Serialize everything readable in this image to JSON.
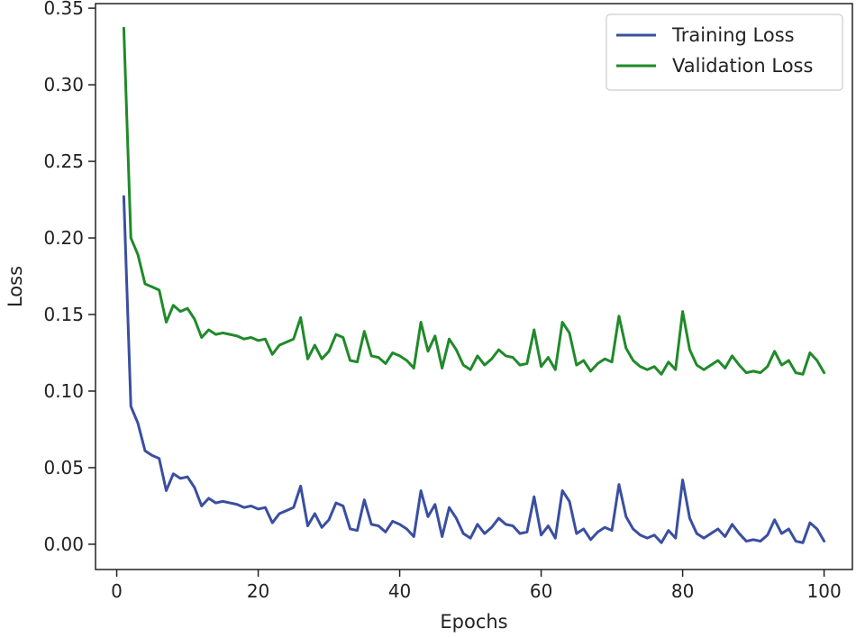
{
  "chart_data": {
    "type": "line",
    "title": "",
    "xlabel": "Epochs",
    "ylabel": "Loss",
    "xlim": [
      -3,
      104
    ],
    "ylim": [
      -0.0165,
      0.353
    ],
    "xticks": [
      0,
      20,
      40,
      60,
      80,
      100
    ],
    "xtick_labels": [
      "0",
      "20",
      "40",
      "60",
      "80",
      "100"
    ],
    "yticks": [
      0.0,
      0.05,
      0.1,
      0.15,
      0.2,
      0.25,
      0.3,
      0.35
    ],
    "ytick_labels": [
      "0.00",
      "0.05",
      "0.10",
      "0.15",
      "0.20",
      "0.25",
      "0.30",
      "0.35"
    ],
    "grid": false,
    "legend_position": "top-right",
    "series": [
      {
        "name": "Training Loss",
        "color": "#3a4fa0",
        "x": [
          1,
          2,
          3,
          4,
          5,
          6,
          7,
          8,
          9,
          10,
          11,
          12,
          13,
          14,
          15,
          16,
          17,
          18,
          19,
          20,
          21,
          22,
          23,
          24,
          25,
          26,
          27,
          28,
          29,
          30,
          31,
          32,
          33,
          34,
          35,
          36,
          37,
          38,
          39,
          40,
          41,
          42,
          43,
          44,
          45,
          46,
          47,
          48,
          49,
          50,
          51,
          52,
          53,
          54,
          55,
          56,
          57,
          58,
          59,
          60,
          61,
          62,
          63,
          64,
          65,
          66,
          67,
          68,
          69,
          70,
          71,
          72,
          73,
          74,
          75,
          76,
          77,
          78,
          79,
          80,
          81,
          82,
          83,
          84,
          85,
          86,
          87,
          88,
          89,
          90,
          91,
          92,
          93,
          94,
          95,
          96,
          97,
          98,
          99,
          100
        ],
        "values": [
          0.227,
          0.09,
          0.079,
          0.061,
          0.058,
          0.056,
          0.035,
          0.046,
          0.043,
          0.044,
          0.037,
          0.025,
          0.03,
          0.027,
          0.028,
          0.027,
          0.026,
          0.024,
          0.025,
          0.023,
          0.024,
          0.014,
          0.02,
          0.022,
          0.024,
          0.038,
          0.012,
          0.02,
          0.011,
          0.016,
          0.027,
          0.025,
          0.01,
          0.009,
          0.029,
          0.013,
          0.012,
          0.008,
          0.015,
          0.013,
          0.01,
          0.005,
          0.035,
          0.018,
          0.026,
          0.005,
          0.024,
          0.017,
          0.007,
          0.004,
          0.013,
          0.007,
          0.011,
          0.017,
          0.013,
          0.012,
          0.007,
          0.008,
          0.031,
          0.006,
          0.012,
          0.004,
          0.035,
          0.028,
          0.007,
          0.01,
          0.003,
          0.008,
          0.011,
          0.009,
          0.039,
          0.018,
          0.01,
          0.006,
          0.004,
          0.006,
          0.001,
          0.009,
          0.004,
          0.042,
          0.017,
          0.007,
          0.004,
          0.007,
          0.01,
          0.005,
          0.013,
          0.007,
          0.002,
          0.003,
          0.002,
          0.006,
          0.016,
          0.007,
          0.01,
          0.002,
          0.001,
          0.014,
          0.01,
          0.002
        ]
      },
      {
        "name": "Validation Loss",
        "color": "#208a2a",
        "x": [
          1,
          2,
          3,
          4,
          5,
          6,
          7,
          8,
          9,
          10,
          11,
          12,
          13,
          14,
          15,
          16,
          17,
          18,
          19,
          20,
          21,
          22,
          23,
          24,
          25,
          26,
          27,
          28,
          29,
          30,
          31,
          32,
          33,
          34,
          35,
          36,
          37,
          38,
          39,
          40,
          41,
          42,
          43,
          44,
          45,
          46,
          47,
          48,
          49,
          50,
          51,
          52,
          53,
          54,
          55,
          56,
          57,
          58,
          59,
          60,
          61,
          62,
          63,
          64,
          65,
          66,
          67,
          68,
          69,
          70,
          71,
          72,
          73,
          74,
          75,
          76,
          77,
          78,
          79,
          80,
          81,
          82,
          83,
          84,
          85,
          86,
          87,
          88,
          89,
          90,
          91,
          92,
          93,
          94,
          95,
          96,
          97,
          98,
          99,
          100
        ],
        "values": [
          0.337,
          0.2,
          0.189,
          0.17,
          0.168,
          0.166,
          0.145,
          0.156,
          0.152,
          0.154,
          0.147,
          0.135,
          0.14,
          0.137,
          0.138,
          0.137,
          0.136,
          0.134,
          0.135,
          0.133,
          0.134,
          0.124,
          0.13,
          0.132,
          0.134,
          0.148,
          0.121,
          0.13,
          0.121,
          0.126,
          0.137,
          0.135,
          0.12,
          0.119,
          0.139,
          0.123,
          0.122,
          0.118,
          0.125,
          0.123,
          0.12,
          0.115,
          0.145,
          0.126,
          0.136,
          0.115,
          0.134,
          0.127,
          0.117,
          0.114,
          0.123,
          0.117,
          0.121,
          0.127,
          0.123,
          0.122,
          0.117,
          0.118,
          0.14,
          0.116,
          0.122,
          0.114,
          0.145,
          0.138,
          0.117,
          0.12,
          0.113,
          0.118,
          0.121,
          0.119,
          0.149,
          0.128,
          0.12,
          0.116,
          0.114,
          0.116,
          0.111,
          0.119,
          0.114,
          0.152,
          0.127,
          0.117,
          0.114,
          0.117,
          0.12,
          0.115,
          0.123,
          0.117,
          0.112,
          0.113,
          0.112,
          0.116,
          0.126,
          0.117,
          0.12,
          0.112,
          0.111,
          0.125,
          0.12,
          0.112
        ]
      }
    ]
  }
}
